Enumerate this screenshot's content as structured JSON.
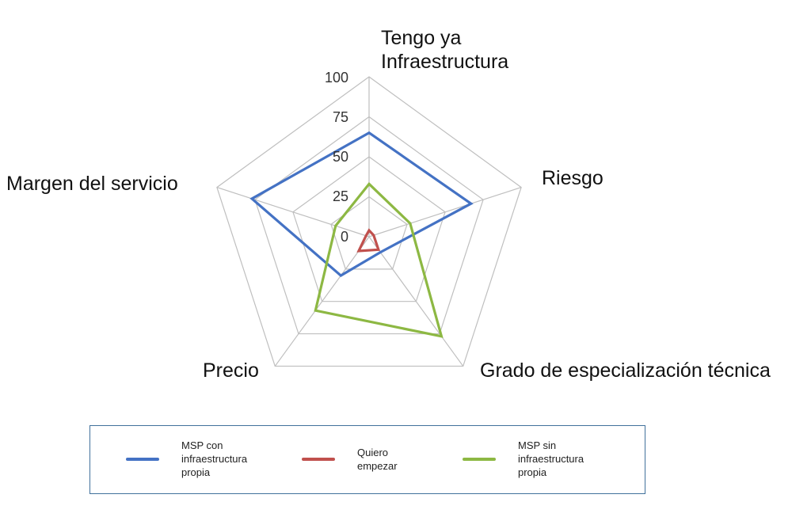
{
  "chart_data": {
    "type": "radar",
    "title": "",
    "categories": [
      "Tengo ya Infraestructura",
      "Riesgo",
      "Grado de especialización técnica",
      "Precio",
      "Margen del servicio"
    ],
    "rlim": [
      0,
      100
    ],
    "ticks": [
      "0",
      "25",
      "50",
      "75",
      "100"
    ],
    "grid": true,
    "legend_position": "bottom",
    "series": [
      {
        "name": "MSP con infraestructura propia",
        "color": "#4472C4",
        "values": [
          65,
          67,
          12,
          30,
          77
        ]
      },
      {
        "name": "Quiero empezar",
        "color": "#C0504D",
        "values": [
          4,
          3,
          10,
          11,
          2
        ]
      },
      {
        "name": "MSP sin infraestructura propia",
        "color": "#8DB843",
        "values": [
          33,
          27,
          77,
          57,
          22
        ]
      }
    ]
  },
  "labels": {
    "top_line1": "Tengo ya",
    "top_line2": "Infraestructura",
    "riesgo": "Riesgo",
    "grado": "Grado de especialización técnica",
    "precio": "Precio",
    "margen": "Margen del servicio"
  },
  "ticks": {
    "t0": "0",
    "t25": "25",
    "t50": "50",
    "t75": "75",
    "t100": "100"
  },
  "legend": {
    "s1_line1": "MSP con",
    "s1_line2": "infraestructura",
    "s1_line3": "propia",
    "s2_line1": "Quiero",
    "s2_line2": "empezar",
    "s3_line1": "MSP sin",
    "s3_line2": "infraestructura",
    "s3_line3": "propia"
  }
}
